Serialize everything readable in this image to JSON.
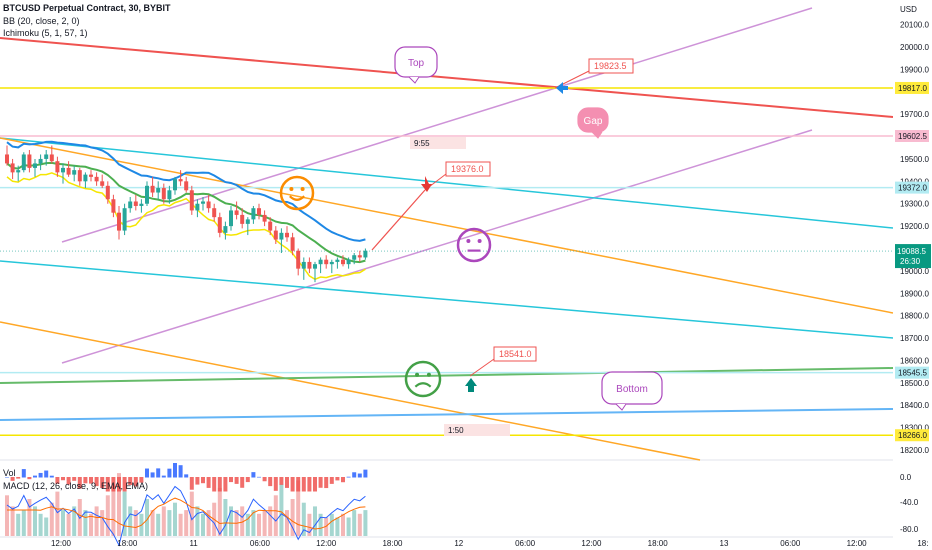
{
  "legend": {
    "symbol": "BTCUSD Perpetual Contract, 30, BYBIT",
    "bb": "BB (20, close, 2, 0)",
    "ichimoku": "Ichimoku (5, 1, 57, 1)",
    "vol": "Vol",
    "macd": "MACD (12, 26, close, 9, EMA, EMA)"
  },
  "chart_data": {
    "type": "candlestick",
    "currency": "USD",
    "ylim": [
      18150,
      20250
    ],
    "y_ticks": [
      "20100.0",
      "20000.0",
      "19900.0",
      "19700.0",
      "19600.0",
      "19500.0",
      "19400.0",
      "19300.0",
      "19200.0",
      "19100.0",
      "19000.0",
      "18900.0",
      "18800.0",
      "18700.0",
      "18600.0",
      "18500.0",
      "18400.0",
      "18300.0",
      "18200.0"
    ],
    "x_ticks": [
      "12:00",
      "18:00",
      "11",
      "06:00",
      "12:00",
      "18:00",
      "12",
      "06:00",
      "12:00",
      "18:00",
      "13",
      "06:00",
      "12:00",
      "18:"
    ],
    "current_price": "19088.5",
    "countdown": "26:30",
    "price_tags": [
      {
        "value": "19817.0",
        "color": "#ffeb3b"
      },
      {
        "value": "19602.5",
        "color": "#f8bbd0"
      },
      {
        "value": "19372.0",
        "color": "#b2ebf2"
      },
      {
        "value": "18545.5",
        "color": "#b2ebf2"
      },
      {
        "value": "18266.0",
        "color": "#ffeb3b"
      }
    ],
    "horizontal_lines": [
      {
        "price": 19817,
        "color": "#f5e600"
      },
      {
        "price": 19602.5,
        "color": "#f8bbd0"
      },
      {
        "price": 19372,
        "color": "#b2ebf2"
      },
      {
        "price": 18545.5,
        "color": "#b2ebf2"
      },
      {
        "price": 18266,
        "color": "#f5e600"
      }
    ],
    "annotations": {
      "callouts": [
        {
          "text": "19823.5"
        },
        {
          "text": "19376.0"
        },
        {
          "text": "18541.0"
        }
      ],
      "bubbles": [
        {
          "text": "Top"
        },
        {
          "text": "Gap"
        },
        {
          "text": "Bottom"
        }
      ],
      "time_labels": [
        "9:55",
        "1:50"
      ]
    },
    "candles": [
      [
        19520,
        19560,
        19470,
        19480
      ],
      [
        19480,
        19500,
        19410,
        19440
      ],
      [
        19440,
        19470,
        19400,
        19450
      ],
      [
        19450,
        19530,
        19440,
        19520
      ],
      [
        19520,
        19540,
        19440,
        19460
      ],
      [
        19460,
        19500,
        19420,
        19480
      ],
      [
        19480,
        19520,
        19450,
        19500
      ],
      [
        19500,
        19540,
        19470,
        19520
      ],
      [
        19520,
        19560,
        19480,
        19490
      ],
      [
        19490,
        19510,
        19420,
        19440
      ],
      [
        19440,
        19480,
        19390,
        19460
      ],
      [
        19460,
        19490,
        19420,
        19430
      ],
      [
        19430,
        19470,
        19400,
        19450
      ],
      [
        19450,
        19460,
        19380,
        19400
      ],
      [
        19400,
        19440,
        19370,
        19430
      ],
      [
        19430,
        19450,
        19400,
        19420
      ],
      [
        19420,
        19440,
        19380,
        19400
      ],
      [
        19400,
        19430,
        19370,
        19380
      ],
      [
        19380,
        19400,
        19300,
        19320
      ],
      [
        19320,
        19340,
        19240,
        19260
      ],
      [
        19260,
        19290,
        19140,
        19180
      ],
      [
        19180,
        19300,
        19160,
        19280
      ],
      [
        19280,
        19330,
        19260,
        19310
      ],
      [
        19310,
        19340,
        19270,
        19290
      ],
      [
        19290,
        19320,
        19260,
        19300
      ],
      [
        19300,
        19400,
        19290,
        19380
      ],
      [
        19380,
        19420,
        19330,
        19350
      ],
      [
        19350,
        19400,
        19320,
        19370
      ],
      [
        19370,
        19390,
        19300,
        19320
      ],
      [
        19320,
        19380,
        19300,
        19360
      ],
      [
        19360,
        19420,
        19340,
        19410
      ],
      [
        19410,
        19450,
        19380,
        19400
      ],
      [
        19400,
        19420,
        19350,
        19360
      ],
      [
        19360,
        19380,
        19250,
        19270
      ],
      [
        19270,
        19320,
        19240,
        19300
      ],
      [
        19300,
        19330,
        19270,
        19310
      ],
      [
        19310,
        19340,
        19260,
        19280
      ],
      [
        19280,
        19300,
        19220,
        19240
      ],
      [
        19240,
        19260,
        19150,
        19170
      ],
      [
        19170,
        19220,
        19140,
        19200
      ],
      [
        19200,
        19290,
        19180,
        19270
      ],
      [
        19270,
        19310,
        19230,
        19250
      ],
      [
        19250,
        19280,
        19190,
        19210
      ],
      [
        19210,
        19240,
        19160,
        19230
      ],
      [
        19230,
        19290,
        19210,
        19280
      ],
      [
        19280,
        19300,
        19230,
        19250
      ],
      [
        19250,
        19270,
        19200,
        19220
      ],
      [
        19220,
        19240,
        19160,
        19180
      ],
      [
        19180,
        19200,
        19120,
        19140
      ],
      [
        19140,
        19190,
        19080,
        19170
      ],
      [
        19170,
        19200,
        19130,
        19150
      ],
      [
        19150,
        19170,
        19070,
        19090
      ],
      [
        19090,
        19100,
        18980,
        19010
      ],
      [
        19010,
        19060,
        18960,
        19040
      ],
      [
        19040,
        19060,
        18990,
        19010
      ],
      [
        19010,
        19040,
        18950,
        19030
      ],
      [
        19030,
        19060,
        18990,
        19050
      ],
      [
        19050,
        19070,
        19010,
        19030
      ],
      [
        19030,
        19050,
        18990,
        19040
      ],
      [
        19040,
        19060,
        19010,
        19050
      ],
      [
        19050,
        19070,
        19020,
        19030
      ],
      [
        19030,
        19060,
        19010,
        19050
      ],
      [
        19050,
        19080,
        19030,
        19070
      ],
      [
        19070,
        19090,
        19040,
        19060
      ],
      [
        19060,
        19100,
        19050,
        19090
      ]
    ],
    "volume": [
      0.55,
      0.4,
      0.3,
      0.35,
      0.5,
      0.4,
      0.3,
      0.25,
      0.45,
      0.6,
      0.35,
      0.3,
      0.4,
      0.5,
      0.35,
      0.3,
      0.4,
      0.35,
      0.55,
      0.7,
      0.85,
      0.6,
      0.4,
      0.35,
      0.3,
      0.5,
      0.35,
      0.3,
      0.4,
      0.35,
      0.45,
      0.3,
      0.35,
      0.6,
      0.4,
      0.3,
      0.35,
      0.45,
      0.65,
      0.5,
      0.4,
      0.35,
      0.4,
      0.3,
      0.35,
      0.3,
      0.35,
      0.4,
      0.55,
      0.7,
      0.35,
      0.5,
      0.75,
      0.45,
      0.3,
      0.4,
      0.3,
      0.25,
      0.3,
      0.25,
      0.3,
      0.25,
      0.35,
      0.3,
      0.35
    ],
    "macd_ticks": [
      "0.0",
      "-40.0",
      "-80.0"
    ]
  }
}
